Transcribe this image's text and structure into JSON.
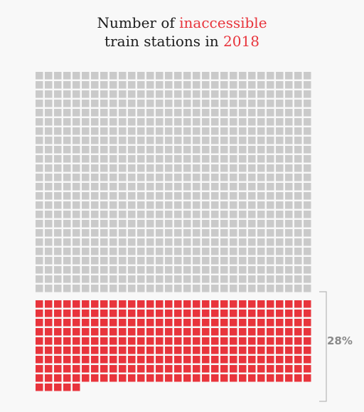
{
  "title": {
    "line1_prefix": "Number of ",
    "line1_highlight": "inaccessible",
    "line2_prefix": "train stations in ",
    "line2_highlight": "2018"
  },
  "colors": {
    "background": "#f8f8f8",
    "accessible": "#cacaca",
    "inaccessible": "#e8343c",
    "bracket": "#b7b7b7",
    "label": "#8a8a8a",
    "title": "#1b1b1b",
    "highlight": "#e8343c"
  },
  "chart_data": {
    "type": "waffle",
    "title": "Number of inaccessible train stations in 2018",
    "columns": 30,
    "series": [
      {
        "name": "accessible",
        "count": 720,
        "color": "#cacaca"
      },
      {
        "name": "inaccessible",
        "count": 275,
        "color": "#e8343c"
      }
    ],
    "annotation": {
      "label": "28%",
      "target_series": "inaccessible",
      "style": "bracket"
    }
  }
}
